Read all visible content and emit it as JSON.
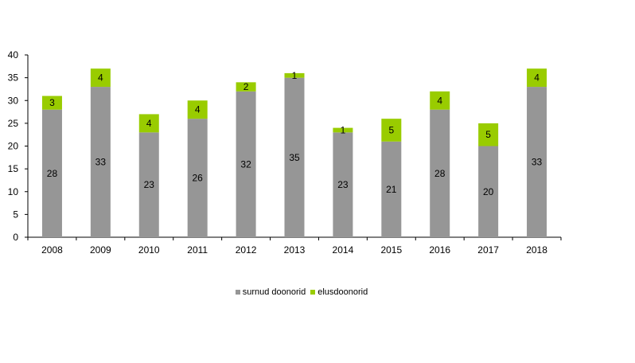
{
  "chart_data": {
    "type": "bar",
    "stacked": true,
    "categories": [
      "2008",
      "2009",
      "2010",
      "2011",
      "2012",
      "2013",
      "2014",
      "2015",
      "2016",
      "2017",
      "2018"
    ],
    "series": [
      {
        "name": "surnud doonorid",
        "color": "#969696",
        "values": [
          28,
          33,
          23,
          26,
          32,
          35,
          23,
          21,
          28,
          20,
          33
        ]
      },
      {
        "name": "elusdoonorid",
        "color": "#99cc00",
        "values": [
          3,
          4,
          4,
          4,
          2,
          1,
          1,
          5,
          4,
          5,
          4
        ]
      }
    ],
    "ylim": [
      0,
      40
    ],
    "yticks": [
      0,
      5,
      10,
      15,
      20,
      25,
      30,
      35,
      40
    ],
    "grid": false,
    "legend_position": "bottom"
  }
}
